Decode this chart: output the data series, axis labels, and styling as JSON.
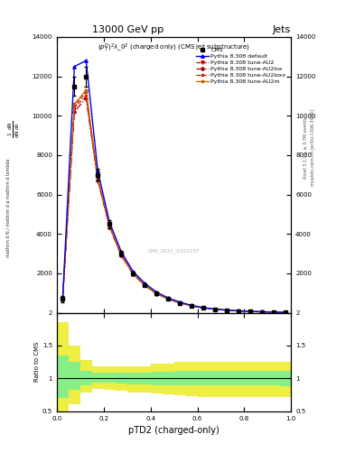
{
  "title": "13000 GeV pp",
  "title_right": "Jets",
  "subplot_title": "$(p_T^D)^2\\lambda\\_0^2$ (charged only) (CMS jet substructure)",
  "xlabel": "pTD2 (charged-only)",
  "ylabel_main_lines": [
    "mathrm d^2N",
    "mathrm d p mathrm d lambda",
    "",
    "1 / mathrm d N"
  ],
  "ylabel_ratio": "Ratio to CMS",
  "right_label": "Rivet 3.1.10, ≥ 2.7M events",
  "right_label2": "mcplots.cern.ch [arXiv:1306.3436]",
  "watermark": "CMS_2021_I1920187",
  "xlim": [
    0,
    1
  ],
  "ylim_main": [
    0,
    14000
  ],
  "ylim_ratio": [
    0.5,
    2.0
  ],
  "yticks_main": [
    2000,
    4000,
    6000,
    8000,
    10000,
    12000,
    14000
  ],
  "yticks_ratio": [
    0.5,
    1.0,
    1.5,
    2.0
  ],
  "x_data": [
    0.025,
    0.075,
    0.125,
    0.175,
    0.225,
    0.275,
    0.325,
    0.375,
    0.425,
    0.475,
    0.525,
    0.575,
    0.625,
    0.675,
    0.725,
    0.775,
    0.825,
    0.875,
    0.925,
    0.975
  ],
  "cms_y": [
    700,
    11500,
    12000,
    7000,
    4500,
    3000,
    2000,
    1400,
    1000,
    700,
    500,
    350,
    250,
    180,
    130,
    90,
    65,
    45,
    30,
    15
  ],
  "cms_yerr": [
    150,
    500,
    500,
    300,
    200,
    130,
    90,
    60,
    45,
    30,
    22,
    16,
    12,
    9,
    7,
    5,
    4,
    3,
    2,
    2
  ],
  "pythia_default_y": [
    720,
    12500,
    12800,
    7200,
    4600,
    3100,
    2100,
    1500,
    1050,
    750,
    540,
    370,
    260,
    185,
    135,
    95,
    68,
    48,
    32,
    18
  ],
  "pythia_au2_y": [
    690,
    10500,
    11200,
    6800,
    4400,
    2950,
    2000,
    1400,
    980,
    700,
    500,
    350,
    245,
    175,
    127,
    90,
    63,
    44,
    29,
    16
  ],
  "pythia_au2lox_y": [
    680,
    10200,
    10900,
    6700,
    4350,
    2900,
    1970,
    1380,
    960,
    690,
    495,
    345,
    240,
    172,
    125,
    88,
    62,
    43,
    29,
    16
  ],
  "pythia_au2loxx_y": [
    685,
    10400,
    11000,
    6750,
    4380,
    2920,
    1980,
    1390,
    970,
    695,
    498,
    347,
    242,
    173,
    126,
    89,
    63,
    43,
    29,
    16
  ],
  "pythia_au2m_y": [
    695,
    10600,
    11300,
    6850,
    4420,
    2960,
    2010,
    1410,
    990,
    705,
    505,
    352,
    248,
    177,
    129,
    91,
    64,
    45,
    30,
    17
  ],
  "ratio_green_upper": [
    1.35,
    1.25,
    1.12,
    1.08,
    1.08,
    1.08,
    1.08,
    1.08,
    1.1,
    1.1,
    1.12,
    1.12,
    1.12,
    1.12,
    1.12,
    1.12,
    1.12,
    1.12,
    1.12,
    1.12
  ],
  "ratio_green_lower": [
    0.7,
    0.82,
    0.9,
    0.94,
    0.93,
    0.92,
    0.91,
    0.91,
    0.9,
    0.9,
    0.89,
    0.89,
    0.89,
    0.89,
    0.89,
    0.89,
    0.89,
    0.89,
    0.89,
    0.88
  ],
  "ratio_yellow_upper": [
    1.85,
    1.5,
    1.28,
    1.18,
    1.18,
    1.18,
    1.18,
    1.18,
    1.22,
    1.22,
    1.25,
    1.25,
    1.25,
    1.25,
    1.25,
    1.25,
    1.25,
    1.25,
    1.25,
    1.25
  ],
  "ratio_yellow_lower": [
    0.38,
    0.6,
    0.78,
    0.84,
    0.82,
    0.81,
    0.79,
    0.79,
    0.77,
    0.75,
    0.74,
    0.73,
    0.72,
    0.72,
    0.72,
    0.72,
    0.72,
    0.72,
    0.72,
    0.71
  ],
  "color_default": "#0000ee",
  "color_au2": "#cc0000",
  "color_au2lox": "#aa0000",
  "color_au2loxx": "#cc2200",
  "color_au2m": "#cc6600",
  "color_cms": "#000000",
  "color_green": "#88ee88",
  "color_yellow": "#eeee44",
  "bg_color": "#ffffff"
}
